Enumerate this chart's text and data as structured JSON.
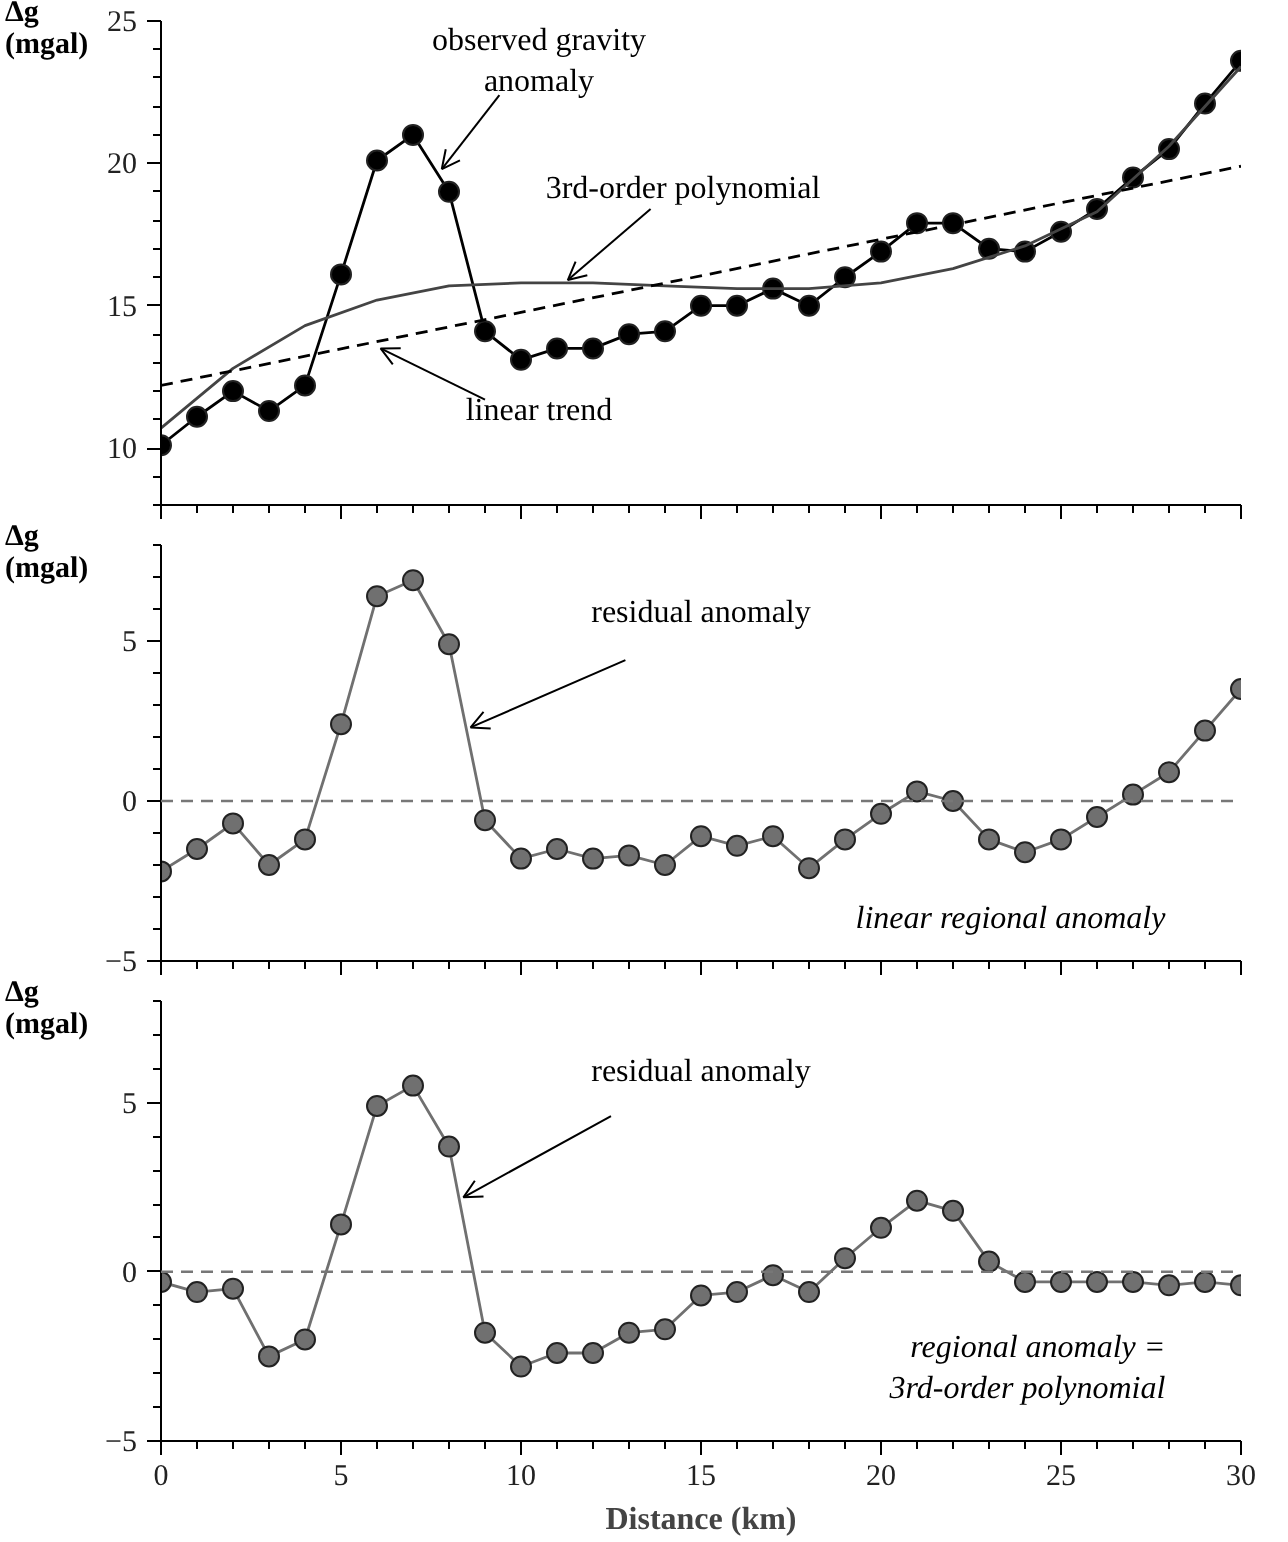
{
  "chart_data": [
    {
      "type": "line",
      "ylabel": "Δg\n(mgal)",
      "xlim": [
        0,
        30
      ],
      "ylim": [
        8,
        25
      ],
      "tick_labels": "y",
      "grid": false,
      "xticks": [
        0,
        {
          "value": 1,
          "label": null
        },
        {
          "value": 2,
          "label": null
        },
        {
          "value": 3,
          "label": null
        },
        {
          "value": 4,
          "label": null
        },
        5,
        {
          "value": 6,
          "label": null
        },
        {
          "value": 7,
          "label": null
        },
        {
          "value": 8,
          "label": null
        },
        {
          "value": 9,
          "label": null
        },
        10,
        {
          "value": 11,
          "label": null
        },
        {
          "value": 12,
          "label": null
        },
        {
          "value": 13,
          "label": null
        },
        {
          "value": 14,
          "label": null
        },
        15,
        {
          "value": 16,
          "label": null
        },
        {
          "value": 17,
          "label": null
        },
        {
          "value": 18,
          "label": null
        },
        {
          "value": 19,
          "label": null
        },
        20,
        {
          "value": 21,
          "label": null
        },
        {
          "value": 22,
          "label": null
        },
        {
          "value": 23,
          "label": null
        },
        {
          "value": 24,
          "label": null
        },
        25,
        {
          "value": 26,
          "label": null
        },
        {
          "value": 27,
          "label": null
        },
        {
          "value": 28,
          "label": null
        },
        {
          "value": 29,
          "label": null
        },
        30
      ],
      "yticks": [
        {
          "value": 8,
          "label": null
        },
        {
          "value": 9,
          "label": null
        },
        10,
        {
          "value": 11,
          "label": null
        },
        {
          "value": 12,
          "label": null
        },
        {
          "value": 13,
          "label": null
        },
        {
          "value": 14,
          "label": null
        },
        15,
        {
          "value": 16,
          "label": null
        },
        {
          "value": 17,
          "label": null
        },
        {
          "value": 18,
          "label": null
        },
        {
          "value": 19,
          "label": null
        },
        20,
        {
          "value": 21,
          "label": null
        },
        {
          "value": 22,
          "label": null
        },
        {
          "value": 23,
          "label": null
        },
        {
          "value": 24,
          "label": null
        },
        25
      ],
      "series": [
        {
          "color": "#000000",
          "marker": "circle",
          "line_style": "solid",
          "x": [
            0,
            1,
            2,
            3,
            4,
            5,
            6,
            7,
            8,
            9,
            10,
            11,
            12,
            13,
            14,
            15,
            16,
            17,
            18,
            19,
            20,
            21,
            22,
            23,
            24,
            25,
            26,
            27,
            28,
            29,
            30
          ],
          "values": [
            10.1,
            11.1,
            12.0,
            11.3,
            12.2,
            16.1,
            20.1,
            21.0,
            19.0,
            14.1,
            13.1,
            13.5,
            13.5,
            14.0,
            14.1,
            15.0,
            15.0,
            15.6,
            15.0,
            16.0,
            16.9,
            17.9,
            17.9,
            17.0,
            16.9,
            17.6,
            18.4,
            19.5,
            20.5,
            22.1,
            23.6
          ]
        },
        {
          "color": "#444444",
          "marker": "none",
          "line_style": "solid",
          "x": [
            0,
            2,
            4,
            6,
            8,
            10,
            12,
            14,
            16,
            18,
            20,
            22,
            24,
            26,
            28,
            30
          ],
          "values": [
            10.7,
            12.8,
            14.3,
            15.2,
            15.7,
            15.8,
            15.8,
            15.7,
            15.6,
            15.6,
            15.8,
            16.3,
            17.1,
            18.3,
            20.6,
            23.4
          ]
        },
        {
          "color": "#000000",
          "marker": "none",
          "line_style": "dashed",
          "x": [
            0,
            30
          ],
          "values": [
            12.2,
            19.9
          ]
        }
      ],
      "annotations": [
        {
          "text": "observed gravity\nanomaly",
          "x": 7.8,
          "y": 19.8
        },
        {
          "text": "3rd-order polynomial",
          "x": 11.3,
          "y": 15.9
        },
        {
          "text": "linear trend",
          "x": 6.1,
          "y": 13.5
        }
      ]
    },
    {
      "type": "line",
      "ylabel": "Δg\n(mgal)",
      "xlim": [
        0,
        30
      ],
      "ylim": [
        -5,
        8
      ],
      "tick_labels": "y",
      "grid": false,
      "xticks": [
        0,
        {
          "value": 1,
          "label": null
        },
        {
          "value": 2,
          "label": null
        },
        {
          "value": 3,
          "label": null
        },
        {
          "value": 4,
          "label": null
        },
        5,
        {
          "value": 6,
          "label": null
        },
        {
          "value": 7,
          "label": null
        },
        {
          "value": 8,
          "label": null
        },
        {
          "value": 9,
          "label": null
        },
        10,
        {
          "value": 11,
          "label": null
        },
        {
          "value": 12,
          "label": null
        },
        {
          "value": 13,
          "label": null
        },
        {
          "value": 14,
          "label": null
        },
        15,
        {
          "value": 16,
          "label": null
        },
        {
          "value": 17,
          "label": null
        },
        {
          "value": 18,
          "label": null
        },
        {
          "value": 19,
          "label": null
        },
        20,
        {
          "value": 21,
          "label": null
        },
        {
          "value": 22,
          "label": null
        },
        {
          "value": 23,
          "label": null
        },
        {
          "value": 24,
          "label": null
        },
        25,
        {
          "value": 26,
          "label": null
        },
        {
          "value": 27,
          "label": null
        },
        {
          "value": 28,
          "label": null
        },
        {
          "value": 29,
          "label": null
        },
        30
      ],
      "yticks": [
        -5,
        {
          "value": -4,
          "label": null
        },
        {
          "value": -3,
          "label": null
        },
        {
          "value": -2,
          "label": null
        },
        {
          "value": -1,
          "label": null
        },
        0,
        {
          "value": 1,
          "label": null
        },
        {
          "value": 2,
          "label": null
        },
        {
          "value": 3,
          "label": null
        },
        {
          "value": 4,
          "label": null
        },
        5,
        {
          "value": 6,
          "label": null
        },
        {
          "value": 7,
          "label": null
        },
        {
          "value": 8,
          "label": null
        }
      ],
      "series": [
        {
          "color": "#707070",
          "marker": "circle",
          "line_style": "solid",
          "x": [
            0,
            1,
            2,
            3,
            4,
            5,
            6,
            7,
            8,
            9,
            10,
            11,
            12,
            13,
            14,
            15,
            16,
            17,
            18,
            19,
            20,
            21,
            22,
            23,
            24,
            25,
            26,
            27,
            28,
            29,
            30
          ],
          "values": [
            -2.2,
            -1.5,
            -0.7,
            -2.0,
            -1.2,
            2.4,
            6.4,
            6.9,
            4.9,
            -0.6,
            -1.8,
            -1.5,
            -1.8,
            -1.7,
            -2.0,
            -1.1,
            -1.4,
            -1.1,
            -2.1,
            -1.2,
            -0.4,
            0.3,
            0.0,
            -1.2,
            -1.6,
            -1.2,
            -0.5,
            0.2,
            0.9,
            2.2,
            3.5
          ]
        }
      ],
      "ref_lines": [
        {
          "axis": "y",
          "value": 0,
          "label": null,
          "color": "#777777",
          "line_style": "dashed"
        }
      ],
      "annotations": [
        {
          "text": "residual anomaly",
          "x": 8.6,
          "y": 2.3
        },
        "linear regional anomaly"
      ]
    },
    {
      "type": "line",
      "ylabel": "Δg\n(mgal)",
      "xlabel": "Distance (km)",
      "xlim": [
        0,
        30
      ],
      "ylim": [
        -5,
        8
      ],
      "grid": false,
      "xticks": [
        0,
        {
          "value": 1,
          "label": null
        },
        {
          "value": 2,
          "label": null
        },
        {
          "value": 3,
          "label": null
        },
        {
          "value": 4,
          "label": null
        },
        5,
        {
          "value": 6,
          "label": null
        },
        {
          "value": 7,
          "label": null
        },
        {
          "value": 8,
          "label": null
        },
        {
          "value": 9,
          "label": null
        },
        10,
        {
          "value": 11,
          "label": null
        },
        {
          "value": 12,
          "label": null
        },
        {
          "value": 13,
          "label": null
        },
        {
          "value": 14,
          "label": null
        },
        15,
        {
          "value": 16,
          "label": null
        },
        {
          "value": 17,
          "label": null
        },
        {
          "value": 18,
          "label": null
        },
        {
          "value": 19,
          "label": null
        },
        20,
        {
          "value": 21,
          "label": null
        },
        {
          "value": 22,
          "label": null
        },
        {
          "value": 23,
          "label": null
        },
        {
          "value": 24,
          "label": null
        },
        25,
        {
          "value": 26,
          "label": null
        },
        {
          "value": 27,
          "label": null
        },
        {
          "value": 28,
          "label": null
        },
        {
          "value": 29,
          "label": null
        },
        30
      ],
      "yticks": [
        -5,
        {
          "value": -4,
          "label": null
        },
        {
          "value": -3,
          "label": null
        },
        {
          "value": -2,
          "label": null
        },
        {
          "value": -1,
          "label": null
        },
        0,
        {
          "value": 1,
          "label": null
        },
        {
          "value": 2,
          "label": null
        },
        {
          "value": 3,
          "label": null
        },
        {
          "value": 4,
          "label": null
        },
        5,
        {
          "value": 6,
          "label": null
        },
        {
          "value": 7,
          "label": null
        },
        {
          "value": 8,
          "label": null
        }
      ],
      "series": [
        {
          "color": "#707070",
          "marker": "circle",
          "line_style": "solid",
          "x": [
            0,
            1,
            2,
            3,
            4,
            5,
            6,
            7,
            8,
            9,
            10,
            11,
            12,
            13,
            14,
            15,
            16,
            17,
            18,
            19,
            20,
            21,
            22,
            23,
            24,
            25,
            26,
            27,
            28,
            29,
            30
          ],
          "values": [
            -0.3,
            -0.6,
            -0.5,
            -2.5,
            -2.0,
            1.4,
            4.9,
            5.5,
            3.7,
            -1.8,
            -2.8,
            -2.4,
            -2.4,
            -1.8,
            -1.7,
            -0.7,
            -0.6,
            -0.1,
            -0.6,
            0.4,
            1.3,
            2.1,
            1.8,
            0.3,
            -0.3,
            -0.3,
            -0.3,
            -0.3,
            -0.4,
            -0.3,
            -0.4
          ]
        }
      ],
      "ref_lines": [
        {
          "axis": "y",
          "value": 0,
          "label": null,
          "color": "#777777",
          "line_style": "dashed"
        }
      ],
      "annotations": [
        {
          "text": "residual anomaly",
          "x": 8.4,
          "y": 2.2
        },
        "regional anomaly =\n3rd-order polynomial"
      ]
    }
  ]
}
